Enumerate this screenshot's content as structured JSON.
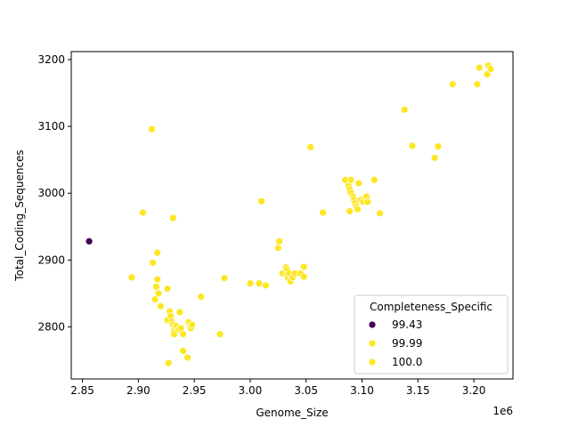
{
  "chart_data": {
    "type": "scatter",
    "title": "",
    "xlabel": "Genome_Size",
    "ylabel": "Total_Coding_Sequences",
    "x_offset_label": "1e6",
    "x_multiplier": 1000000,
    "xlim": [
      2.84,
      3.235
    ],
    "ylim": [
      2722,
      3212
    ],
    "x_ticks": [
      2.85,
      2.9,
      2.95,
      3.0,
      3.05,
      3.1,
      3.15,
      3.2
    ],
    "x_tick_labels": [
      "2.85",
      "2.90",
      "2.95",
      "3.00",
      "3.05",
      "3.10",
      "3.15",
      "3.20"
    ],
    "y_ticks": [
      2800,
      2900,
      3000,
      3100,
      3200
    ],
    "y_tick_labels": [
      "2800",
      "2900",
      "3000",
      "3100",
      "3200"
    ],
    "grid": false,
    "legend": {
      "title": "Completeness_Specific",
      "position": "lower-right",
      "entries": [
        {
          "label": "99.43",
          "color": "#440154"
        },
        {
          "label": "99.99",
          "color": "#fde725"
        },
        {
          "label": "100.0",
          "color": "#fde725"
        }
      ]
    },
    "series": [
      {
        "name": "99.43",
        "color": "#440154",
        "points": [
          [
            2.856,
            2928
          ]
        ]
      },
      {
        "name": "100.0",
        "color": "#fde725",
        "points": [
          [
            2.912,
            3096
          ],
          [
            2.904,
            2971
          ],
          [
            2.931,
            2963
          ],
          [
            2.894,
            2874
          ],
          [
            2.913,
            2896
          ],
          [
            2.917,
            2911
          ],
          [
            2.917,
            2871
          ],
          [
            2.916,
            2860
          ],
          [
            2.918,
            2850
          ],
          [
            2.915,
            2841
          ],
          [
            2.92,
            2831
          ],
          [
            2.926,
            2857
          ],
          [
            2.926,
            2810
          ],
          [
            2.928,
            2823
          ],
          [
            2.929,
            2816
          ],
          [
            2.93,
            2808
          ],
          [
            2.931,
            2803
          ],
          [
            2.932,
            2798
          ],
          [
            2.932,
            2794
          ],
          [
            2.932,
            2789
          ],
          [
            2.934,
            2801
          ],
          [
            2.936,
            2796
          ],
          [
            2.937,
            2822
          ],
          [
            2.938,
            2798
          ],
          [
            2.94,
            2789
          ],
          [
            2.94,
            2764
          ],
          [
            2.944,
            2754
          ],
          [
            2.945,
            2807
          ],
          [
            2.946,
            2801
          ],
          [
            2.947,
            2798
          ],
          [
            2.948,
            2803
          ],
          [
            2.927,
            2746
          ],
          [
            2.956,
            2845
          ],
          [
            2.973,
            2789
          ],
          [
            2.977,
            2873
          ],
          [
            3.0,
            2865
          ],
          [
            3.008,
            2865
          ],
          [
            3.014,
            2862
          ],
          [
            3.01,
            2988
          ],
          [
            3.025,
            2918
          ],
          [
            3.026,
            2928
          ],
          [
            3.029,
            2880
          ],
          [
            3.032,
            2889
          ],
          [
            3.033,
            2885
          ],
          [
            3.033,
            2878
          ],
          [
            3.034,
            2873
          ],
          [
            3.035,
            2880
          ],
          [
            3.036,
            2868
          ],
          [
            3.038,
            2874
          ],
          [
            3.04,
            2880
          ],
          [
            3.045,
            2880
          ],
          [
            3.048,
            2875
          ],
          [
            3.048,
            2890
          ],
          [
            3.054,
            3069
          ],
          [
            3.065,
            2971
          ],
          [
            3.085,
            3020
          ],
          [
            3.088,
            3011
          ],
          [
            3.089,
            3006
          ],
          [
            3.09,
            3001
          ],
          [
            3.09,
            3020
          ],
          [
            3.089,
            2973
          ],
          [
            3.092,
            2995
          ],
          [
            3.093,
            2990
          ],
          [
            3.094,
            2985
          ],
          [
            3.095,
            2980
          ],
          [
            3.096,
            2976
          ],
          [
            3.097,
            3015
          ],
          [
            3.099,
            2990
          ],
          [
            3.101,
            2987
          ],
          [
            3.104,
            2995
          ],
          [
            3.105,
            2987
          ],
          [
            3.111,
            3020
          ],
          [
            3.116,
            2970
          ],
          [
            3.138,
            3125
          ],
          [
            3.145,
            3071
          ],
          [
            3.165,
            3053
          ],
          [
            3.168,
            3070
          ],
          [
            3.181,
            3163
          ],
          [
            3.203,
            3163
          ],
          [
            3.205,
            3188
          ],
          [
            3.212,
            3178
          ],
          [
            3.213,
            3191
          ],
          [
            3.215,
            3186
          ]
        ]
      }
    ]
  }
}
